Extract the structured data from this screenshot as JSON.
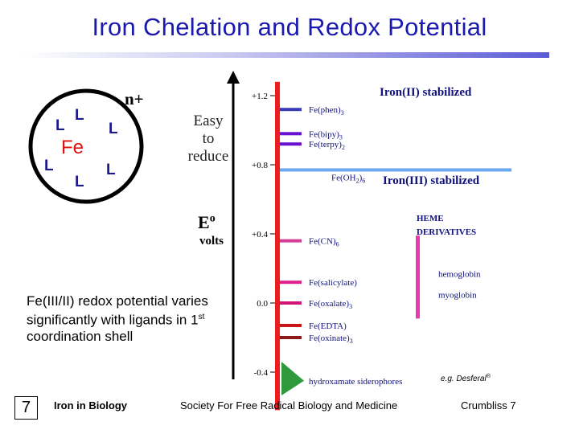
{
  "slide": {
    "title": "Iron Chelation and Redox Potential",
    "body_text": "Fe(III/II) redox potential varies significantly with ligands in 1",
    "body_superscript": "st",
    "body_text_end": " coordination shell",
    "slide_number": "7"
  },
  "fe_diagram": {
    "center": "Fe",
    "charge": "n+",
    "ligands": [
      "L",
      "L",
      "L",
      "L",
      "L",
      "L"
    ]
  },
  "axis": {
    "easy_to_reduce": [
      "Easy",
      "to",
      "reduce"
    ],
    "e_symbol": "E",
    "e_superscript": "o",
    "units": "volts"
  },
  "chart_data": {
    "type": "bar",
    "title": "",
    "ylabel": "Eo volts",
    "ylim": [
      -0.5,
      1.3
    ],
    "y_ticks": [
      "+1.2",
      "+0.8",
      "+0.4",
      "0.0",
      "-0.4"
    ],
    "regions": {
      "iron2": "Iron(II) stabilized",
      "iron3": "Iron(III) stabilized",
      "heme": [
        "HEME",
        "DERIVATIVES"
      ]
    },
    "complexes": [
      {
        "label": "Fe(phen)",
        "sub": "3",
        "value": 1.12,
        "color": "#3a3ab4"
      },
      {
        "label": "Fe(bipy)",
        "sub": "3",
        "value": 0.98,
        "color": "#6a10d0"
      },
      {
        "label": "Fe(terpy)",
        "sub": "2",
        "value": 0.92,
        "color": "#6a10d0"
      },
      {
        "label": "Fe(OH",
        "sub": "2",
        "label2": ")",
        "sub2": "6",
        "value": 0.77,
        "color": "#6aa8f0"
      },
      {
        "label": "Fe(CN)",
        "sub": "6",
        "value": 0.36,
        "color": "#d23d96"
      },
      {
        "label": "Fe(salicylate)",
        "sub": "",
        "value": 0.12,
        "color": "#e0208a"
      },
      {
        "label": "Fe(oxalate)",
        "sub": "3",
        "value": 0.0,
        "color": "#d01478"
      },
      {
        "label": "Fe(EDTA)",
        "sub": "",
        "value": -0.13,
        "color": "#c81414"
      },
      {
        "label": "Fe(oxinate)",
        "sub": "3",
        "value": -0.2,
        "color": "#8c1a1a"
      }
    ],
    "heme": [
      {
        "label": "hemoglobin",
        "value": 0.17
      },
      {
        "label": "myoglobin",
        "value": 0.05
      }
    ],
    "siderophore": {
      "label": "hydroxamate siderophores",
      "value": -0.45
    },
    "desferal": "e.g. Desferal",
    "desferal_mark": "®"
  },
  "footer": {
    "left": "Iron in Biology",
    "center": "Society For Free Radical Biology and Medicine",
    "right": "Crumbliss 7"
  }
}
